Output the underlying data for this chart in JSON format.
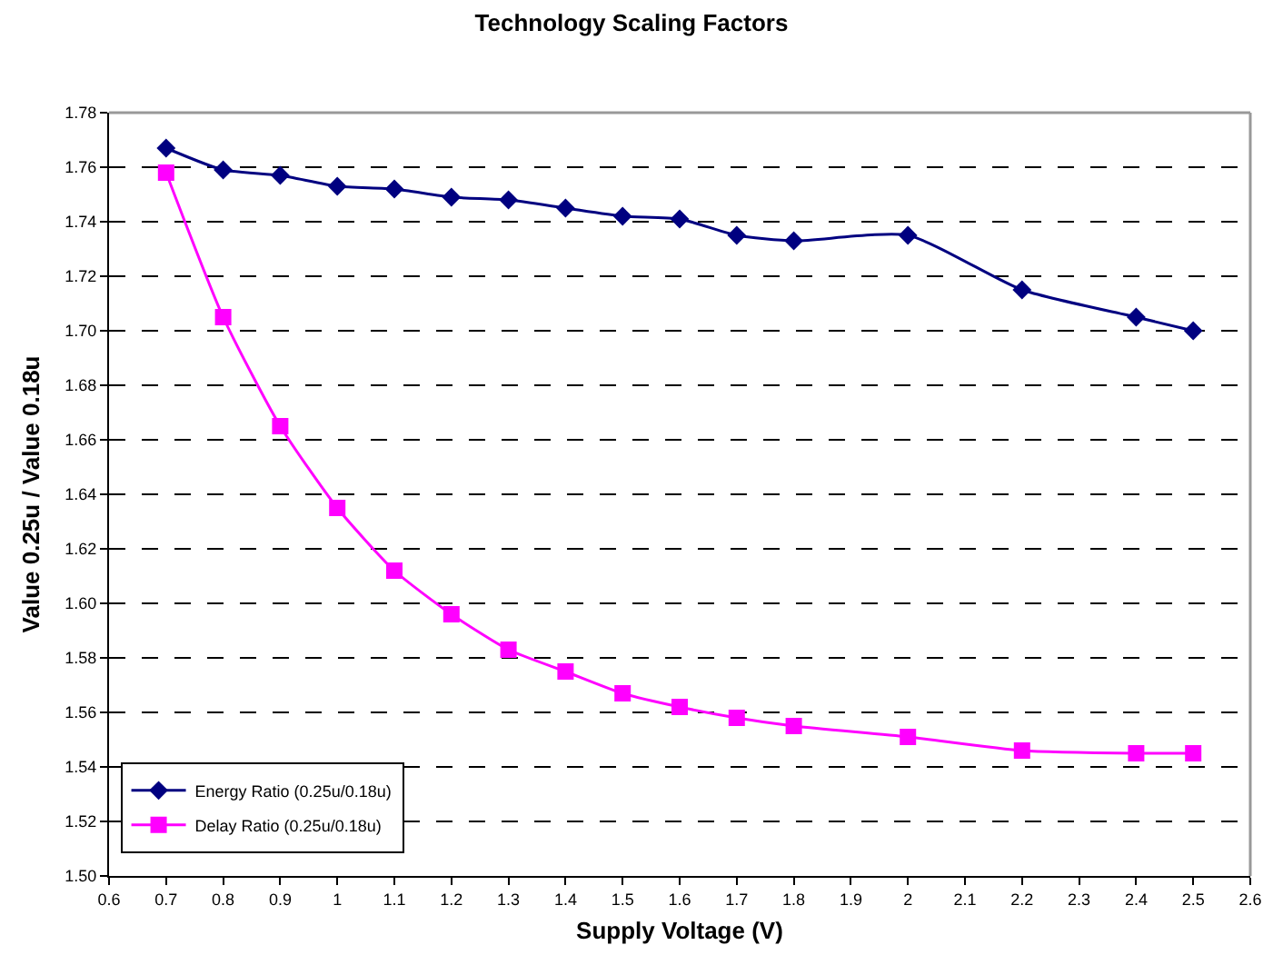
{
  "chart_data": {
    "type": "line",
    "title": "Technology Scaling Factors",
    "xlabel": "Supply Voltage (V)",
    "ylabel": "Value 0.25u / Value 0.18u",
    "x": [
      0.7,
      0.8,
      0.9,
      1.0,
      1.1,
      1.2,
      1.3,
      1.4,
      1.5,
      1.6,
      1.7,
      1.8,
      2.0,
      2.2,
      2.4,
      2.5
    ],
    "series": [
      {
        "name": "Energy Ratio (0.25u/0.18u)",
        "color": "#000080",
        "marker": "diamond",
        "values": [
          1.767,
          1.759,
          1.757,
          1.753,
          1.752,
          1.749,
          1.748,
          1.745,
          1.742,
          1.741,
          1.735,
          1.733,
          1.735,
          1.715,
          1.705,
          1.7
        ]
      },
      {
        "name": "Delay Ratio (0.25u/0.18u)",
        "color": "#ff00ff",
        "marker": "square",
        "values": [
          1.758,
          1.705,
          1.665,
          1.635,
          1.612,
          1.596,
          1.583,
          1.575,
          1.567,
          1.562,
          1.558,
          1.555,
          1.551,
          1.546,
          1.545,
          1.545
        ]
      }
    ],
    "xlim": [
      0.6,
      2.6
    ],
    "xticks": [
      0.6,
      0.7,
      0.8,
      0.9,
      1,
      1.1,
      1.2,
      1.3,
      1.4,
      1.5,
      1.6,
      1.7,
      1.8,
      1.9,
      2,
      2.1,
      2.2,
      2.3,
      2.4,
      2.5,
      2.6
    ],
    "ylim": [
      1.5,
      1.78
    ],
    "yticks": [
      {
        "value": 1.5,
        "label": "1.50"
      },
      {
        "value": 1.52,
        "label": "1.52"
      },
      {
        "value": 1.54,
        "label": "1.54"
      },
      {
        "value": 1.56,
        "label": "1.56"
      },
      {
        "value": 1.58,
        "label": "1.58"
      },
      {
        "value": 1.6,
        "label": "1.60"
      },
      {
        "value": 1.62,
        "label": "1.62"
      },
      {
        "value": 1.64,
        "label": "1.64"
      },
      {
        "value": 1.66,
        "label": "1.66"
      },
      {
        "value": 1.68,
        "label": "1.68"
      },
      {
        "value": 1.7,
        "label": "1.70"
      },
      {
        "value": 1.72,
        "label": "1.72"
      },
      {
        "value": 1.74,
        "label": "1.74"
      },
      {
        "value": 1.76,
        "label": "1.76"
      },
      {
        "value": 1.78,
        "label": "1.78"
      }
    ],
    "grid": "y",
    "legend": "bottom left",
    "line_style": "solid"
  }
}
